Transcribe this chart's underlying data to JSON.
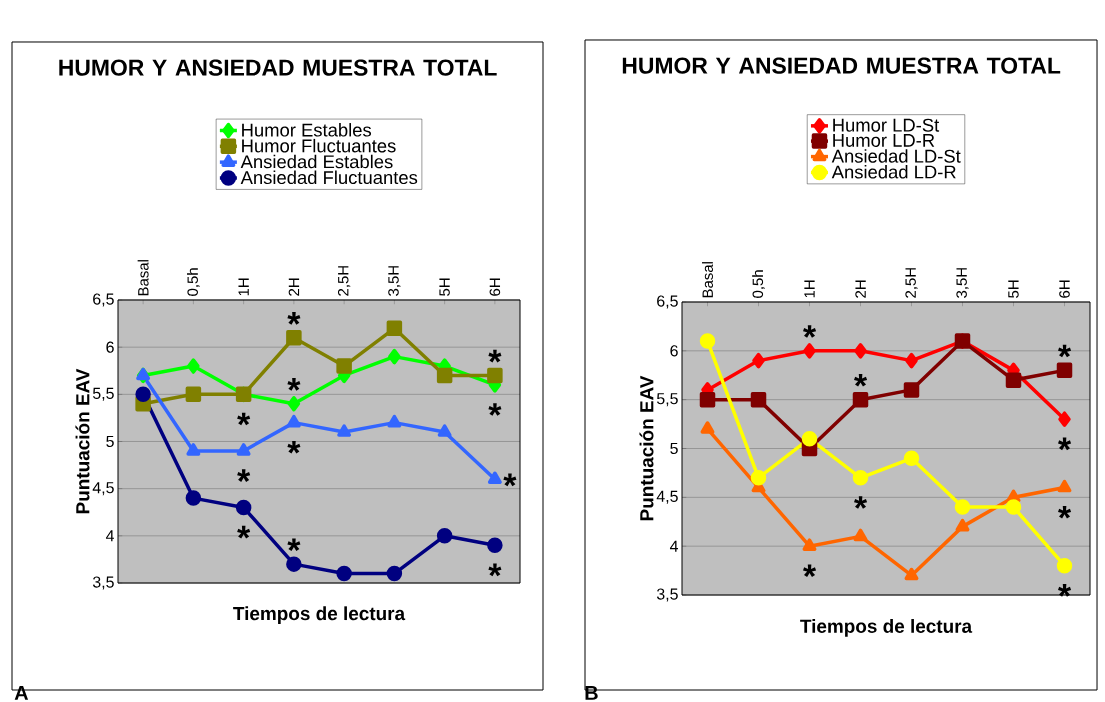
{
  "chart_data": [
    {
      "type": "line",
      "title": "HUMOR Y ANSIEDAD MUESTRA TOTAL",
      "xlabel": "Tiempos de lectura",
      "ylabel": "Puntuación EAV",
      "categories": [
        "Basal",
        "0,5h",
        "1H",
        "2H",
        "2,5H",
        "3,5H",
        "5H",
        "6H"
      ],
      "series": [
        {
          "name": "Humor Estables",
          "color": "#00ff00",
          "marker": "diamond",
          "values": [
            5.7,
            5.8,
            5.5,
            5.4,
            5.7,
            5.9,
            5.8,
            5.6
          ]
        },
        {
          "name": "Humor Fluctuantes",
          "color": "#808000",
          "marker": "square",
          "values": [
            5.4,
            5.5,
            5.5,
            6.1,
            5.8,
            6.2,
            5.7,
            5.7
          ]
        },
        {
          "name": "Ansiedad Estables",
          "color": "#3366ff",
          "marker": "triangle",
          "values": [
            5.7,
            4.9,
            4.9,
            5.2,
            5.1,
            5.2,
            5.1,
            4.6
          ]
        },
        {
          "name": "Ansiedad Fluctuantes",
          "color": "#000080",
          "marker": "circle",
          "values": [
            5.5,
            4.4,
            4.3,
            3.7,
            3.6,
            3.6,
            4.0,
            3.9
          ]
        }
      ],
      "ylim": [
        3.5,
        6.5
      ],
      "yticks": [
        {
          "value": 3.5,
          "label": "3,5"
        },
        4,
        {
          "value": 4.5,
          "label": "4,5"
        },
        5,
        {
          "value": 5.5,
          "label": "5,5"
        },
        6,
        {
          "value": 6.5,
          "label": "6,5"
        }
      ],
      "grid": "y",
      "legend": "top",
      "annotations": [
        {
          "text": "*",
          "x": "1H",
          "y": 5.5
        },
        {
          "text": "*",
          "x": "1H",
          "y": 4.9
        },
        {
          "text": "*",
          "x": "1H",
          "y": 4.3
        },
        {
          "text": "*",
          "x": "2H",
          "y": 6.1
        },
        {
          "text": "*",
          "x": "2H",
          "y": 5.4
        },
        {
          "text": "*",
          "x": "2H",
          "y": 5.2
        },
        {
          "text": "*",
          "x": "2H",
          "y": 3.7
        },
        {
          "text": "*",
          "x": "6H",
          "y": 5.7
        },
        {
          "text": "*",
          "x": "6H",
          "y": 5.6
        },
        {
          "text": "*",
          "x": "6H",
          "y": 4.6
        },
        {
          "text": "*",
          "x": "6H",
          "y": 3.9
        },
        "A"
      ]
    },
    {
      "type": "line",
      "title": "HUMOR Y ANSIEDAD MUESTRA TOTAL",
      "xlabel": "Tiempos de lectura",
      "ylabel": "Puntuación EAV",
      "categories": [
        "Basal",
        "0,5h",
        "1H",
        "2H",
        "2,5H",
        "3,5H",
        "5H",
        "6H"
      ],
      "series": [
        {
          "name": "Humor LD-St",
          "color": "#ff0000",
          "marker": "diamond",
          "values": [
            5.6,
            5.9,
            6.0,
            6.0,
            5.9,
            6.1,
            5.8,
            5.3
          ]
        },
        {
          "name": "Humor LD-R",
          "color": "#800000",
          "marker": "square",
          "values": [
            5.5,
            5.5,
            5.0,
            5.5,
            5.6,
            6.1,
            5.7,
            5.8
          ]
        },
        {
          "name": "Ansiedad LD-St",
          "color": "#ff6600",
          "marker": "triangle",
          "values": [
            5.2,
            4.6,
            4.0,
            4.1,
            3.7,
            4.2,
            4.5,
            4.6
          ]
        },
        {
          "name": "Ansiedad LD-R",
          "color": "#ffff00",
          "marker": "circle",
          "values": [
            6.1,
            4.7,
            5.1,
            4.7,
            4.9,
            4.4,
            4.4,
            3.8
          ]
        }
      ],
      "ylim": [
        3.5,
        6.5
      ],
      "yticks": [
        {
          "value": 3.5,
          "label": "3,5"
        },
        4,
        {
          "value": 4.5,
          "label": "4,5"
        },
        5,
        {
          "value": 5.5,
          "label": "5,5"
        },
        6,
        {
          "value": 6.5,
          "label": "6,5"
        }
      ],
      "grid": "y",
      "legend": "top",
      "annotations": [
        {
          "text": "*",
          "x": "1H",
          "y": 6.0
        },
        {
          "text": "*",
          "x": "2H",
          "y": 5.5
        },
        {
          "text": "*",
          "x": "2H",
          "y": 4.7
        },
        {
          "text": "*",
          "x": "1H",
          "y": 4.0
        },
        {
          "text": "*",
          "x": "6H",
          "y": 5.8
        },
        {
          "text": "*",
          "x": "6H",
          "y": 5.3
        },
        {
          "text": "*",
          "x": "6H",
          "y": 4.6
        },
        {
          "text": "*",
          "x": "6H",
          "y": 3.8
        },
        "B"
      ]
    }
  ]
}
